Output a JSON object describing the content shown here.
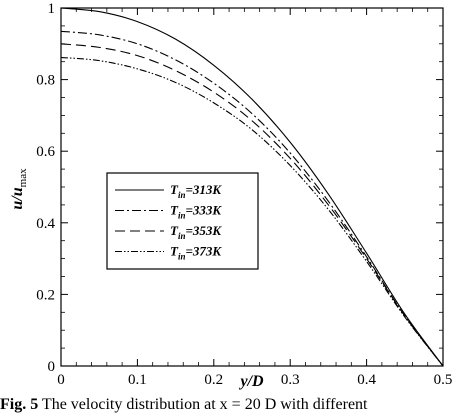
{
  "chart_data": {
    "type": "line",
    "xlabel": "y/D",
    "ylabel": {
      "base": "u/u",
      "sub": "max"
    },
    "xlim": [
      0,
      0.5
    ],
    "ylim": [
      0,
      1
    ],
    "x_ticks": [
      0,
      0.1,
      0.2,
      0.3,
      0.4,
      0.5
    ],
    "x_tick_labels": [
      "0",
      "0.1",
      "0.2",
      "0.3",
      "0.4",
      "0.5"
    ],
    "y_ticks": [
      0,
      0.2,
      0.4,
      0.6,
      0.8,
      1
    ],
    "y_tick_labels": [
      "0",
      "0.2",
      "0.4",
      "0.6",
      "0.8",
      "1"
    ],
    "grid": false,
    "legend_position": "center-left",
    "series": [
      {
        "name_base": "T",
        "name_sub": "in",
        "name_rest": "=313K",
        "style": "solid",
        "x": [
          0,
          0.05,
          0.1,
          0.15,
          0.2,
          0.25,
          0.3,
          0.35,
          0.4,
          0.45,
          0.5
        ],
        "y": [
          1.0,
          0.99,
          0.962,
          0.913,
          0.84,
          0.745,
          0.625,
          0.48,
          0.315,
          0.145,
          0.0
        ]
      },
      {
        "name_base": "T",
        "name_sub": "in",
        "name_rest": "=333K",
        "style": "dash-dot",
        "x": [
          0,
          0.05,
          0.1,
          0.15,
          0.2,
          0.25,
          0.3,
          0.35,
          0.4,
          0.45,
          0.5
        ],
        "y": [
          0.935,
          0.925,
          0.9,
          0.855,
          0.79,
          0.705,
          0.595,
          0.46,
          0.305,
          0.14,
          0.0
        ]
      },
      {
        "name_base": "T",
        "name_sub": "in",
        "name_rest": "=353K",
        "style": "dash",
        "x": [
          0,
          0.05,
          0.1,
          0.15,
          0.2,
          0.25,
          0.3,
          0.35,
          0.4,
          0.45,
          0.5
        ],
        "y": [
          0.9,
          0.89,
          0.867,
          0.825,
          0.765,
          0.685,
          0.58,
          0.45,
          0.3,
          0.14,
          0.0
        ]
      },
      {
        "name_base": "T",
        "name_sub": "in",
        "name_rest": "=373K",
        "style": "dash-dot-dot",
        "x": [
          0,
          0.05,
          0.1,
          0.15,
          0.2,
          0.25,
          0.3,
          0.35,
          0.4,
          0.45,
          0.5
        ],
        "y": [
          0.862,
          0.853,
          0.83,
          0.792,
          0.735,
          0.66,
          0.56,
          0.437,
          0.292,
          0.137,
          0.0
        ]
      }
    ]
  },
  "caption": {
    "label": "Fig. 5",
    "text": " The velocity distribution at x = 20 D with different"
  }
}
